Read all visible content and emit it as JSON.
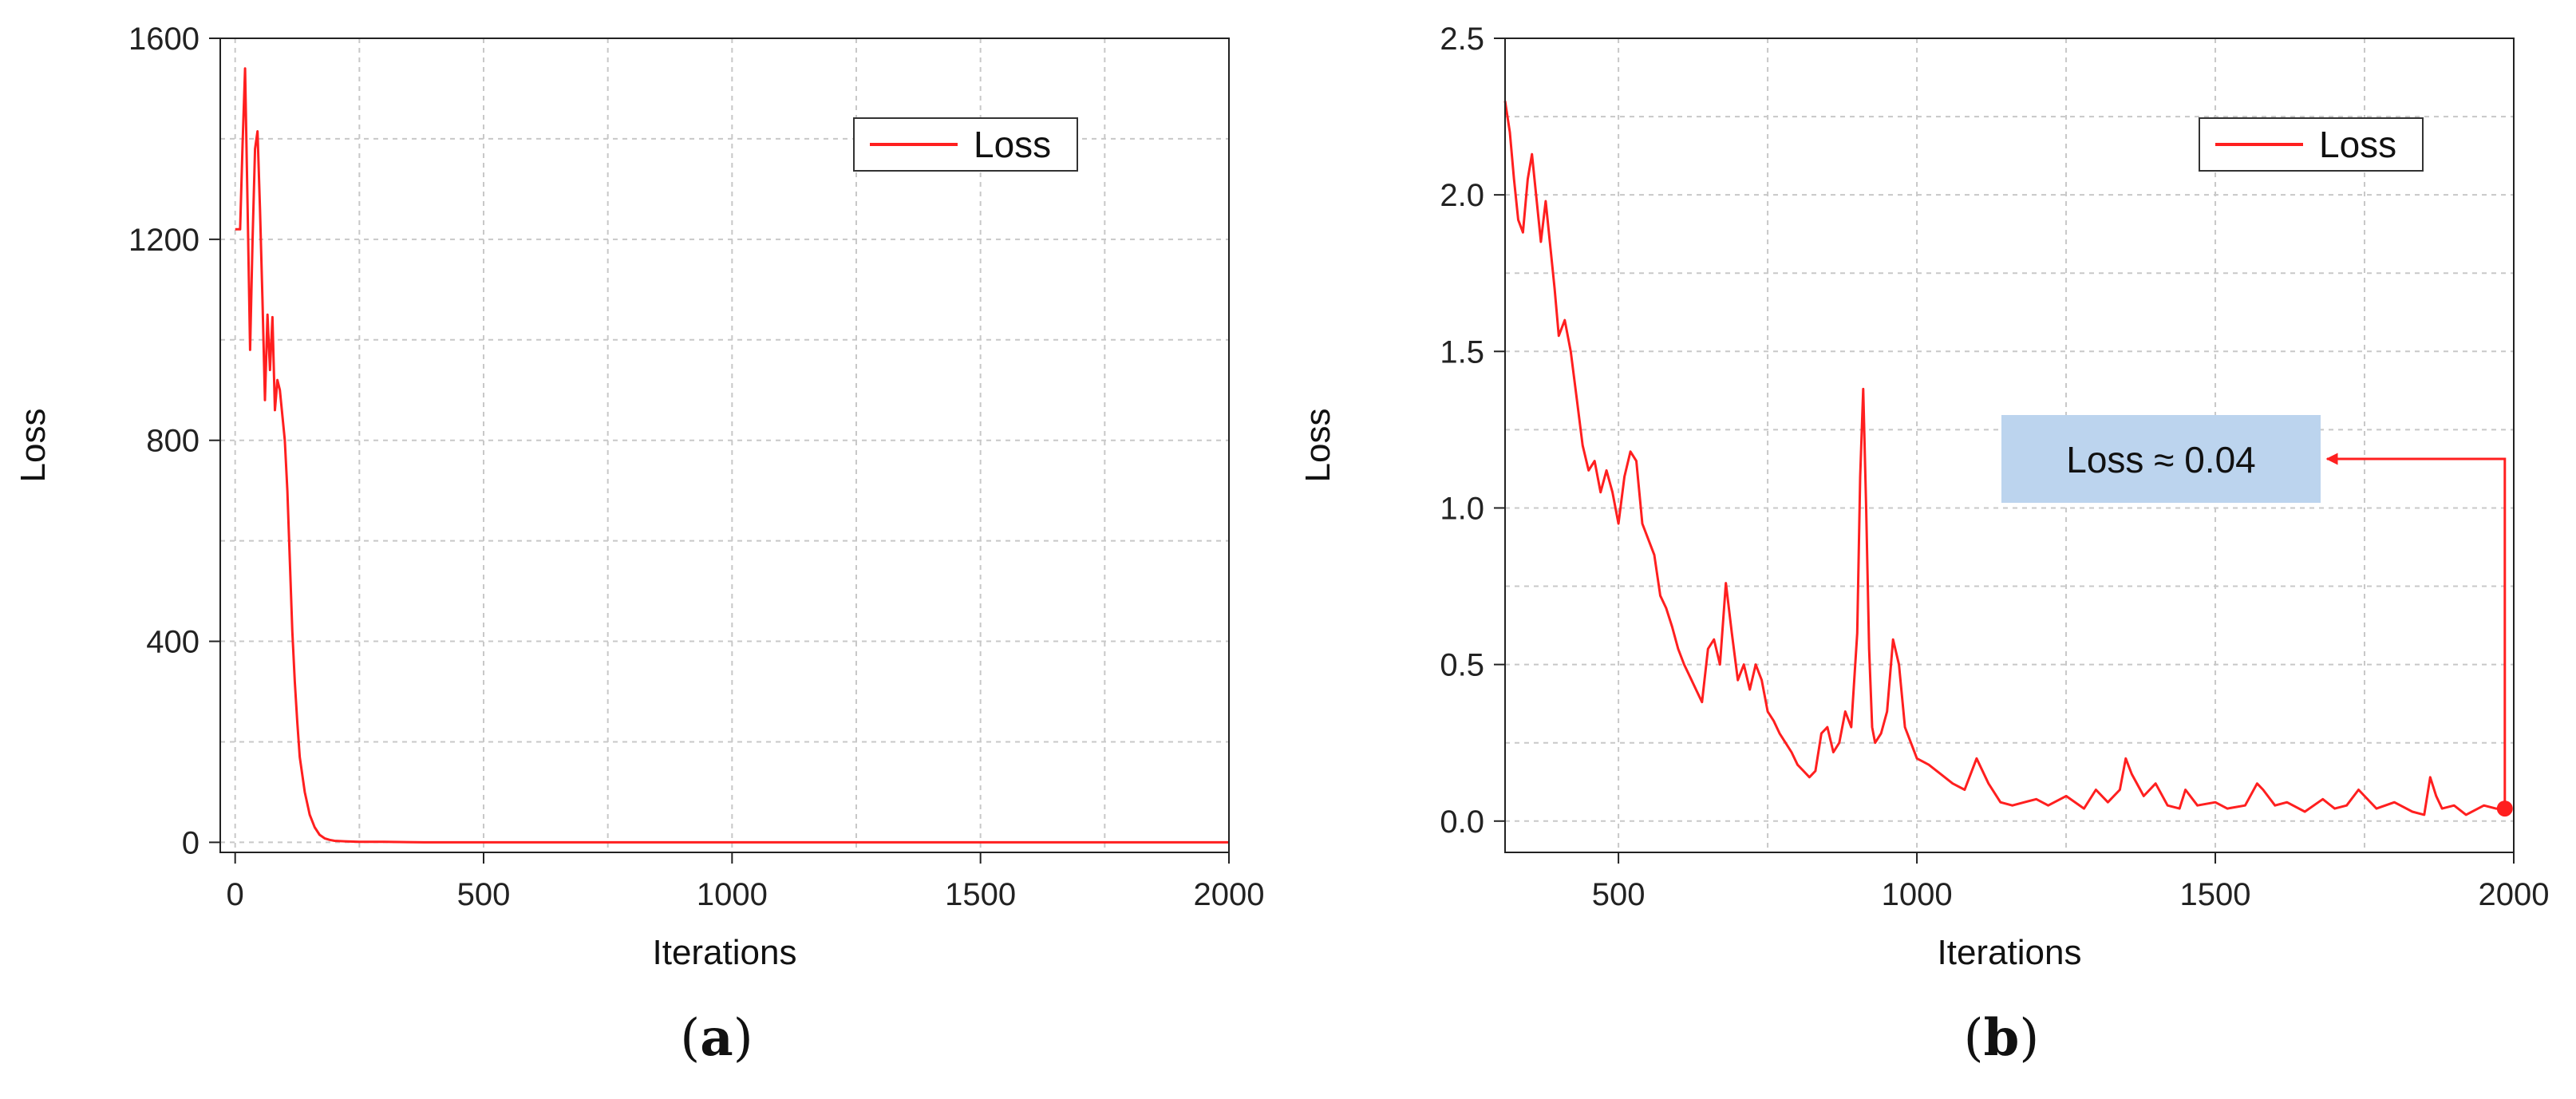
{
  "colors": {
    "series": "#ff1f1f",
    "grid": "#c8c8c8",
    "annotation_bg": "#bcd4ee",
    "annotation_arrow": "#ff1f1f"
  },
  "panels": [
    {
      "label_open": "(",
      "label_letter": "a",
      "label_close": ")",
      "legend": "Loss"
    },
    {
      "label_open": "(",
      "label_letter": "b",
      "label_close": ")",
      "legend": "Loss",
      "annotation": "Loss ≈ 0.04"
    }
  ],
  "chart_data": [
    {
      "type": "line",
      "xlabel": "Iterations",
      "ylabel": "Loss",
      "xlim": [
        -30,
        2000
      ],
      "ylim": [
        -20,
        1600
      ],
      "xticks": [
        0,
        500,
        1000,
        1500,
        2000
      ],
      "yticks": [
        0,
        400,
        800,
        1200,
        1600
      ],
      "xtick_labels": [
        "0",
        "500",
        "1000",
        "1500",
        "2000"
      ],
      "ytick_labels": [
        "0",
        "400",
        "800",
        "1200",
        "1600"
      ],
      "grid": true,
      "legend_position": "top-right",
      "series": [
        {
          "name": "Loss",
          "x": [
            0,
            10,
            15,
            20,
            25,
            30,
            35,
            40,
            45,
            50,
            55,
            60,
            65,
            70,
            75,
            80,
            85,
            90,
            95,
            100,
            105,
            110,
            115,
            120,
            125,
            130,
            140,
            150,
            160,
            170,
            180,
            190,
            200,
            220,
            250,
            300,
            380,
            500,
            1000,
            1500,
            2000
          ],
          "y": [
            1220,
            1220,
            1390,
            1540,
            1270,
            980,
            1200,
            1380,
            1415,
            1260,
            1080,
            880,
            1050,
            940,
            1045,
            860,
            920,
            900,
            850,
            800,
            700,
            560,
            420,
            320,
            240,
            170,
            100,
            55,
            30,
            15,
            8,
            5,
            3,
            2,
            1,
            1,
            0,
            0,
            0,
            0,
            0
          ]
        }
      ]
    },
    {
      "type": "line",
      "xlabel": "Iterations",
      "ylabel": "Loss",
      "xlim": [
        310,
        2000
      ],
      "ylim": [
        -0.1,
        2.5
      ],
      "xticks": [
        500,
        1000,
        1500,
        2000
      ],
      "yticks": [
        0.0,
        0.5,
        1.0,
        1.5,
        2.0,
        2.5
      ],
      "xtick_labels": [
        "500",
        "1000",
        "1500",
        "2000"
      ],
      "ytick_labels": [
        "0.0",
        "0.5",
        "1.0",
        "1.5",
        "2.0",
        "2.5"
      ],
      "grid": true,
      "legend_position": "top-right",
      "annotated_point": {
        "x": 1985,
        "y": 0.04
      },
      "series": [
        {
          "name": "Loss",
          "x": [
            310,
            318,
            325,
            332,
            340,
            348,
            355,
            362,
            370,
            378,
            385,
            393,
            400,
            410,
            420,
            430,
            440,
            450,
            460,
            470,
            480,
            490,
            500,
            510,
            520,
            530,
            540,
            550,
            560,
            570,
            580,
            590,
            600,
            610,
            620,
            630,
            640,
            650,
            660,
            670,
            680,
            690,
            700,
            710,
            720,
            730,
            740,
            750,
            760,
            770,
            780,
            790,
            800,
            810,
            820,
            830,
            840,
            850,
            860,
            870,
            880,
            890,
            900,
            905,
            910,
            915,
            920,
            925,
            930,
            940,
            950,
            960,
            970,
            980,
            990,
            1000,
            1020,
            1040,
            1060,
            1080,
            1100,
            1120,
            1140,
            1160,
            1180,
            1200,
            1220,
            1250,
            1280,
            1300,
            1320,
            1340,
            1350,
            1360,
            1380,
            1400,
            1420,
            1440,
            1450,
            1470,
            1500,
            1520,
            1550,
            1570,
            1580,
            1600,
            1620,
            1650,
            1680,
            1700,
            1720,
            1740,
            1750,
            1770,
            1800,
            1830,
            1850,
            1860,
            1870,
            1880,
            1900,
            1920,
            1950,
            1970,
            1985
          ],
          "y": [
            2.3,
            2.2,
            2.05,
            1.92,
            1.88,
            2.05,
            2.13,
            2.0,
            1.85,
            1.98,
            1.85,
            1.7,
            1.55,
            1.6,
            1.5,
            1.35,
            1.2,
            1.12,
            1.15,
            1.05,
            1.12,
            1.05,
            0.95,
            1.1,
            1.18,
            1.15,
            0.95,
            0.9,
            0.85,
            0.72,
            0.68,
            0.62,
            0.55,
            0.5,
            0.46,
            0.42,
            0.38,
            0.55,
            0.58,
            0.5,
            0.76,
            0.6,
            0.45,
            0.5,
            0.42,
            0.5,
            0.45,
            0.35,
            0.32,
            0.28,
            0.25,
            0.22,
            0.18,
            0.16,
            0.14,
            0.16,
            0.28,
            0.3,
            0.22,
            0.25,
            0.35,
            0.3,
            0.6,
            1.1,
            1.38,
            1.0,
            0.55,
            0.3,
            0.25,
            0.28,
            0.35,
            0.58,
            0.5,
            0.3,
            0.25,
            0.2,
            0.18,
            0.15,
            0.12,
            0.1,
            0.2,
            0.12,
            0.06,
            0.05,
            0.06,
            0.07,
            0.05,
            0.08,
            0.04,
            0.1,
            0.06,
            0.1,
            0.2,
            0.15,
            0.08,
            0.12,
            0.05,
            0.04,
            0.1,
            0.05,
            0.06,
            0.04,
            0.05,
            0.12,
            0.1,
            0.05,
            0.06,
            0.03,
            0.07,
            0.04,
            0.05,
            0.1,
            0.08,
            0.04,
            0.06,
            0.03,
            0.02,
            0.14,
            0.08,
            0.04,
            0.05,
            0.02,
            0.05,
            0.04,
            0.04
          ]
        }
      ]
    }
  ]
}
